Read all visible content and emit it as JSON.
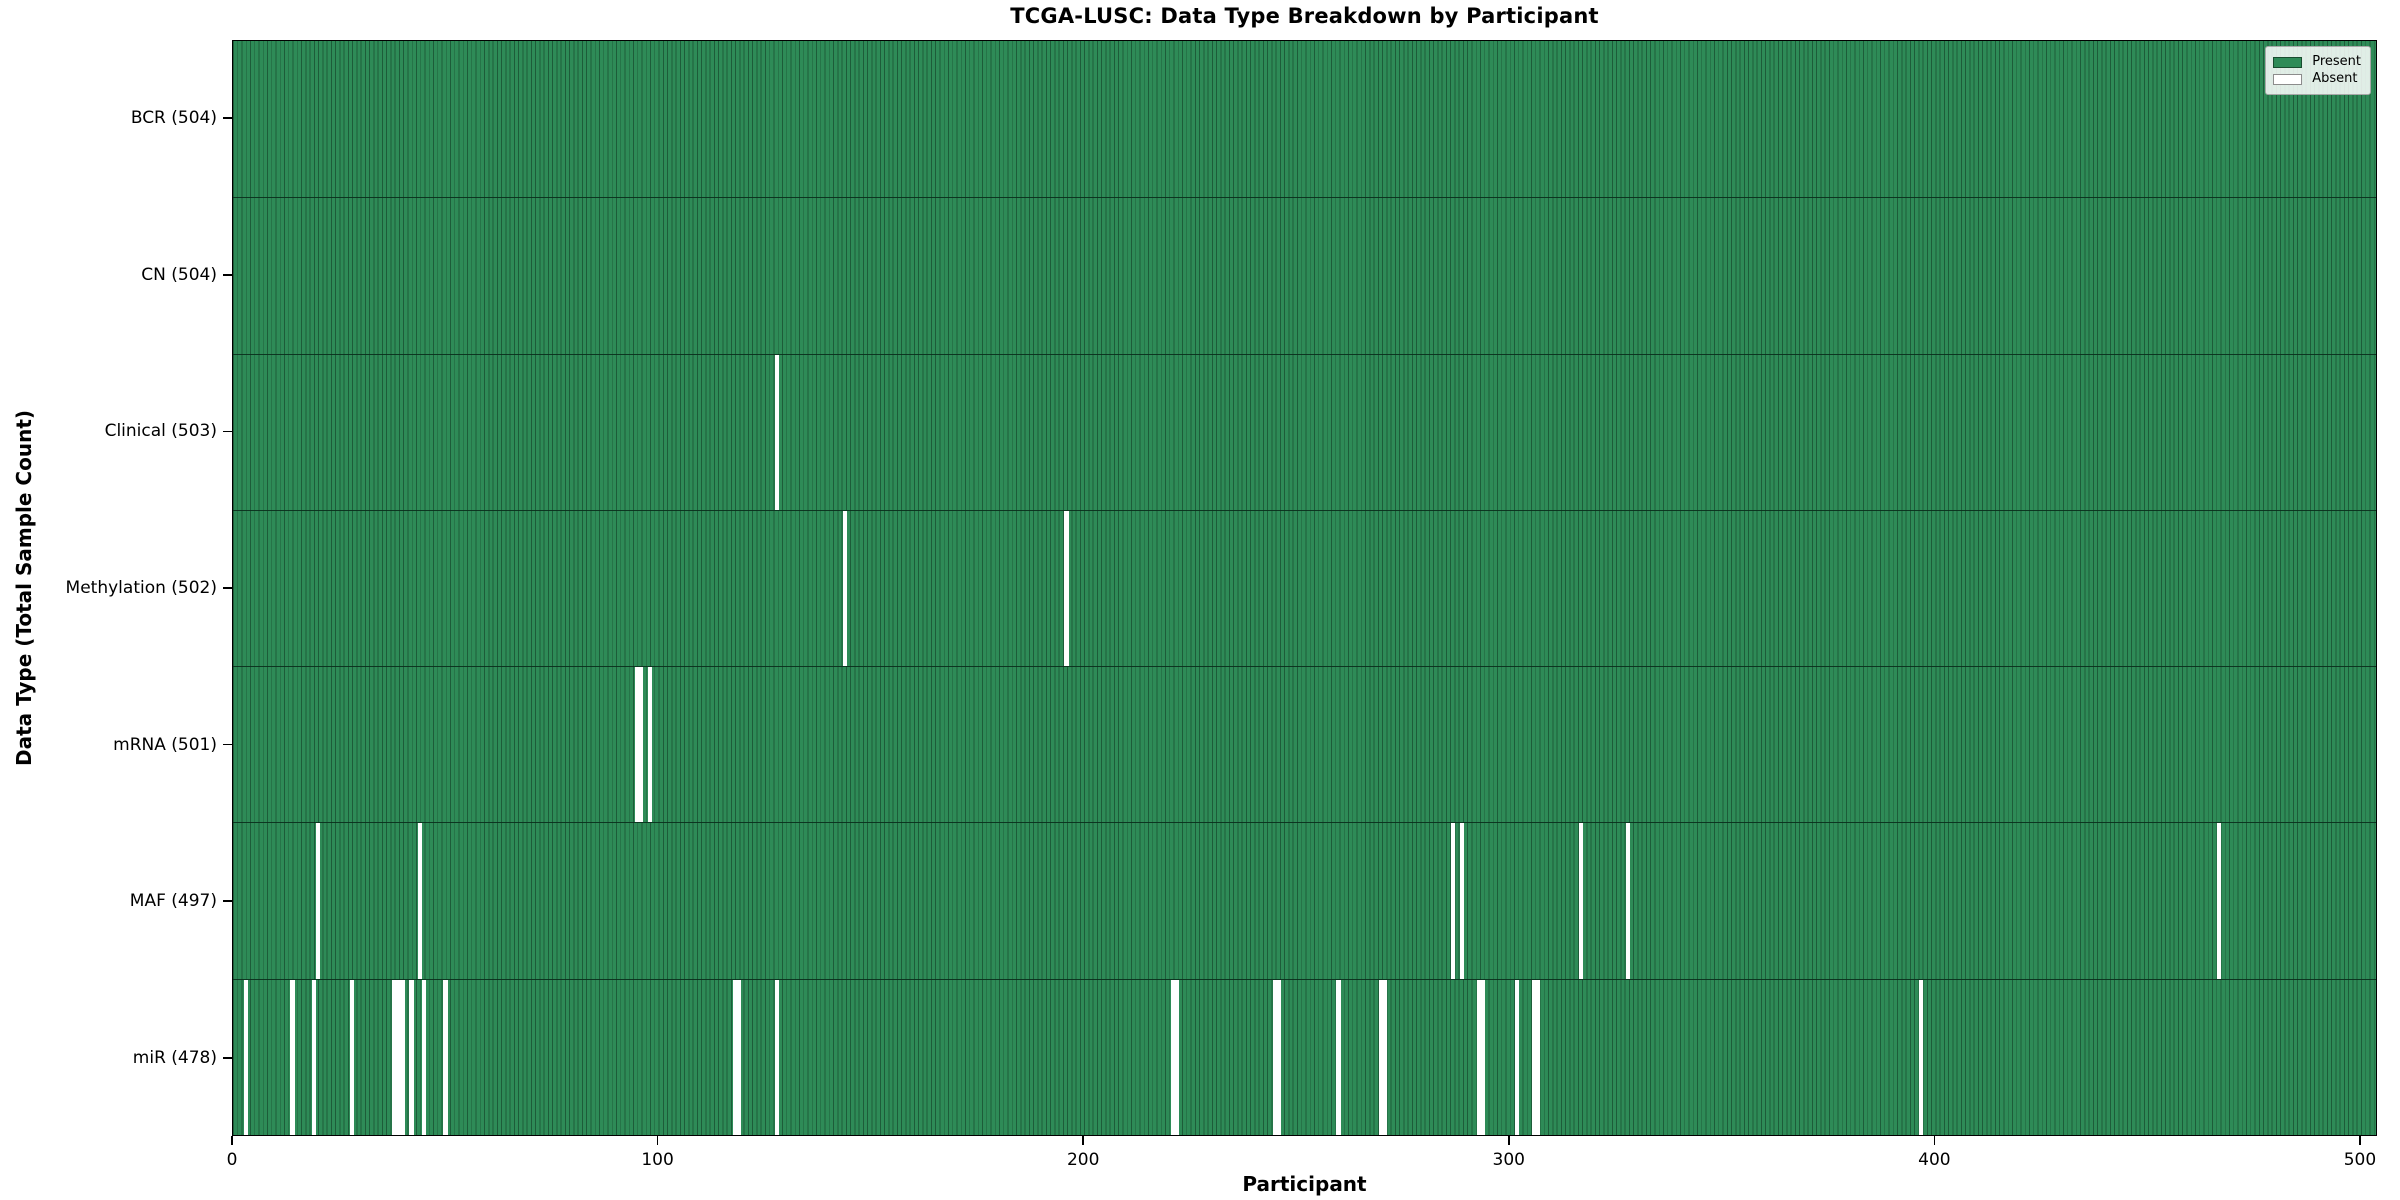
{
  "title": "TCGA-LUSC: Data Type Breakdown by Participant",
  "chart_data": {
    "type": "heatmap",
    "title": "TCGA-LUSC: Data Type Breakdown by Participant",
    "xlabel": "Participant",
    "ylabel": "Data Type (Total Sample Count)",
    "n_participants": 504,
    "x_range": [
      0,
      504
    ],
    "xticks": [
      "0",
      "100",
      "200",
      "300",
      "400",
      "500"
    ],
    "xtick_values": [
      0,
      100,
      200,
      300,
      400,
      500
    ],
    "grid": false,
    "legend_position": "upper right",
    "colors": {
      "present": "#2e8b57",
      "absent": "#ffffff",
      "bar_edge": "#1d5c39",
      "axis": "#000000"
    },
    "legend": {
      "entries": [
        {
          "label": "Present",
          "color": "#2e8b57"
        },
        {
          "label": "Absent",
          "color": "#ffffff"
        }
      ]
    },
    "rows": [
      {
        "label": "BCR (504)",
        "name": "BCR",
        "total": 504,
        "absent_participants": []
      },
      {
        "label": "CN (504)",
        "name": "CN",
        "total": 504,
        "absent_participants": []
      },
      {
        "label": "Clinical (503)",
        "name": "Clinical",
        "total": 503,
        "absent_participants": [
          128
        ]
      },
      {
        "label": "Methylation (502)",
        "name": "Methylation",
        "total": 502,
        "absent_participants": [
          144,
          196
        ]
      },
      {
        "label": "mRNA (501)",
        "name": "mRNA",
        "total": 501,
        "absent_participants": [
          95,
          96,
          98
        ]
      },
      {
        "label": "MAF (497)",
        "name": "MAF",
        "total": 497,
        "absent_participants": [
          20,
          44,
          287,
          289,
          317,
          328,
          467
        ]
      },
      {
        "label": "miR (478)",
        "name": "miR",
        "total": 478,
        "absent_participants": [
          3,
          14,
          19,
          28,
          38,
          39,
          40,
          42,
          45,
          50,
          118,
          119,
          128,
          221,
          222,
          245,
          246,
          260,
          270,
          271,
          293,
          294,
          302,
          306,
          307,
          397
        ]
      }
    ]
  }
}
